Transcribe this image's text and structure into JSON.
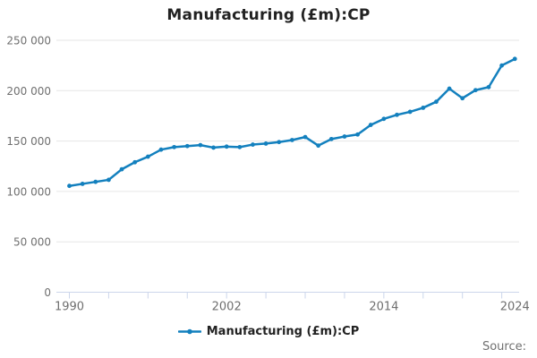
{
  "title": "Manufacturing (£m):CP",
  "legend": {
    "label": "Manufacturing (£m):CP"
  },
  "source_label": "Source:",
  "colors": {
    "line": "#1380be",
    "grid": "#e6e6e6",
    "axis": "#ccd6eb",
    "title_text": "#222222",
    "legend_text": "#222222",
    "tick_text": "#6f6f6f",
    "background": "#ffffff"
  },
  "chart_data": {
    "type": "line",
    "title": "Manufacturing (£m):CP",
    "xlabel": "",
    "ylabel": "",
    "x": [
      1990,
      1991,
      1992,
      1993,
      1994,
      1995,
      1996,
      1997,
      1998,
      1999,
      2000,
      2001,
      2002,
      2003,
      2004,
      2005,
      2006,
      2007,
      2008,
      2009,
      2010,
      2011,
      2012,
      2013,
      2014,
      2015,
      2016,
      2017,
      2018,
      2019,
      2020,
      2021,
      2022,
      2023,
      2024
    ],
    "series": [
      {
        "name": "Manufacturing (£m):CP",
        "values": [
          105500,
          107500,
          109500,
          111500,
          122000,
          129000,
          134500,
          141500,
          144000,
          145000,
          146000,
          143500,
          144500,
          144000,
          146500,
          147500,
          149000,
          151000,
          154000,
          145500,
          152000,
          154500,
          156500,
          166000,
          172000,
          176000,
          179000,
          183000,
          189000,
          202000,
          192500,
          200500,
          203500,
          225000,
          231500
        ]
      }
    ],
    "ylim": [
      0,
      250000
    ],
    "yticks": [
      250000,
      200000,
      150000,
      100000,
      50000,
      0
    ],
    "ytick_labels": [
      "250 000",
      "200 000",
      "150 000",
      "100 000",
      "50 000",
      "0"
    ],
    "xticks": [
      {
        "year": 1990,
        "label": "1990"
      },
      {
        "year": 2002,
        "label": "2002"
      },
      {
        "year": 2014,
        "label": "2014"
      },
      {
        "year": 2024,
        "label": "2024"
      }
    ],
    "minor_xtick_start": 1990,
    "minor_xtick_step": 3,
    "minor_xtick_end": 2023,
    "grid": "horizontal",
    "legend_position": "bottom",
    "marker": "circle"
  }
}
